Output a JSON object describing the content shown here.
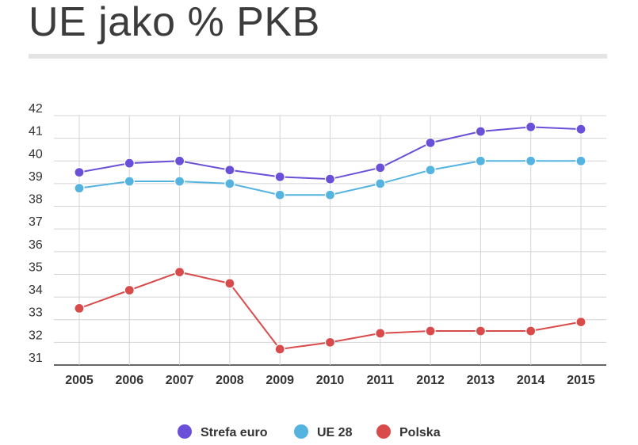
{
  "title": "UE jako % PKB",
  "chart_data": {
    "type": "line",
    "title": "UE jako % PKB",
    "xlabel": "",
    "ylabel": "",
    "ylim": [
      31,
      42
    ],
    "ytick_labels": [
      "31",
      "32",
      "33",
      "34",
      "35",
      "36",
      "37",
      "38",
      "39",
      "40",
      "41",
      "42"
    ],
    "categories": [
      "2005",
      "2006",
      "2007",
      "2008",
      "2009",
      "2010",
      "2011",
      "2012",
      "2013",
      "2014",
      "2015"
    ],
    "grid": true,
    "legend_position": "bottom",
    "series": [
      {
        "name": "Strefa euro",
        "color": "#6a4fd8",
        "values": [
          39.5,
          39.9,
          40.0,
          39.6,
          39.3,
          39.2,
          39.7,
          40.8,
          41.3,
          41.5,
          41.4
        ]
      },
      {
        "name": "UE 28",
        "color": "#55b3e0",
        "values": [
          38.8,
          39.1,
          39.1,
          39.0,
          38.5,
          38.5,
          39.0,
          39.6,
          40.0,
          40.0,
          40.0
        ]
      },
      {
        "name": "Polska",
        "color": "#d94b4b",
        "values": [
          33.5,
          34.3,
          35.1,
          34.6,
          31.7,
          32.0,
          32.4,
          32.5,
          32.5,
          32.5,
          32.9
        ]
      }
    ]
  }
}
